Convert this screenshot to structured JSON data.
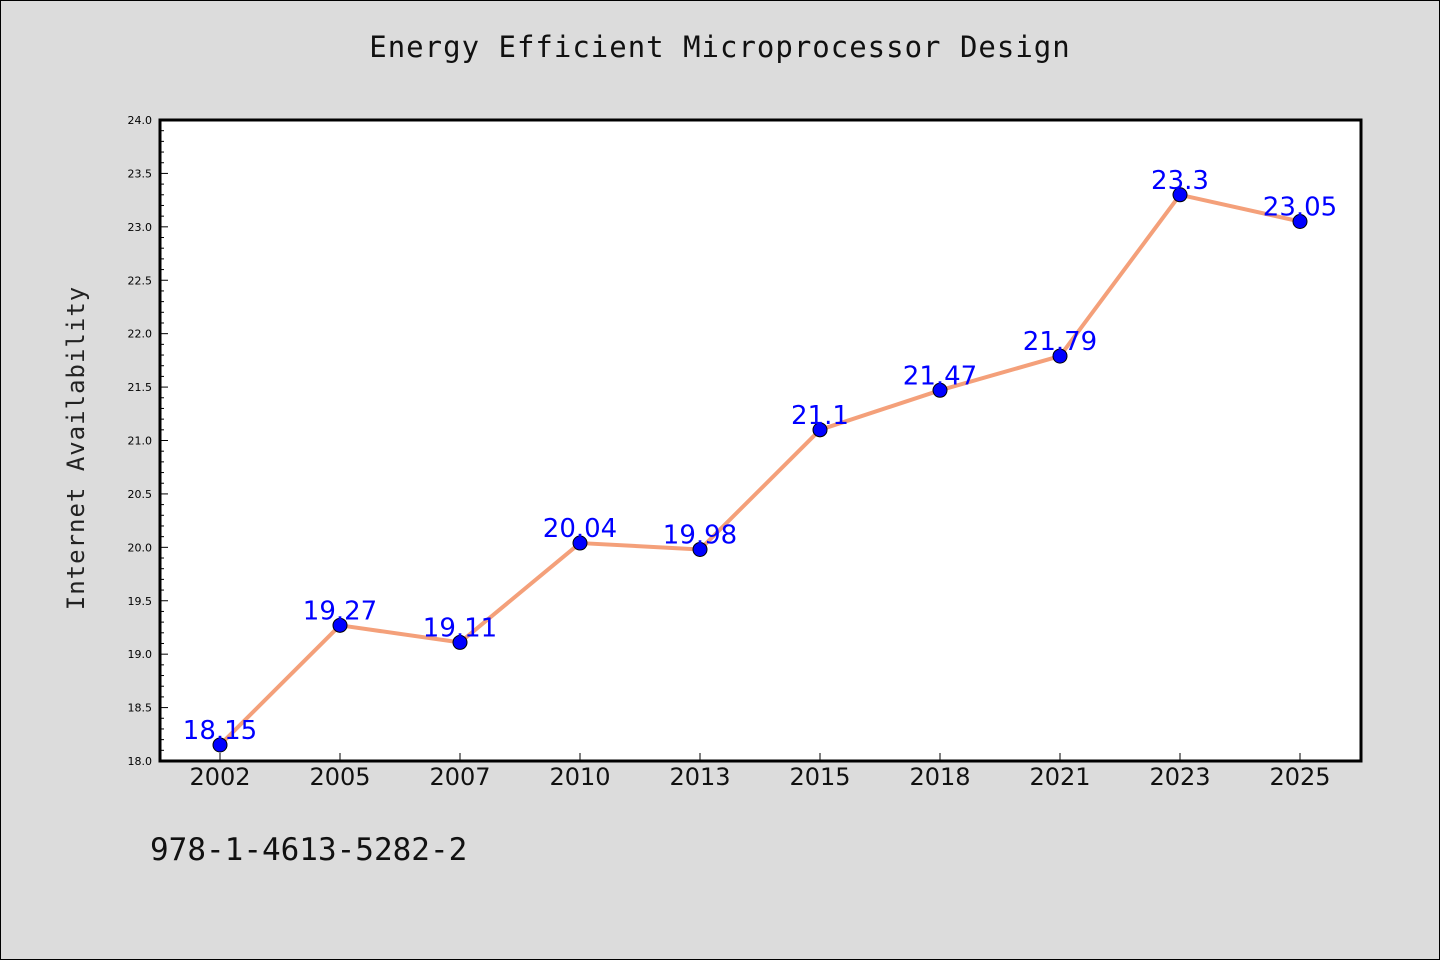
{
  "chart_data": {
    "type": "line",
    "title": "Energy Efficient Microprocessor Design",
    "xlabel": "",
    "ylabel": "Internet Availability",
    "categories": [
      "2002",
      "2005",
      "2007",
      "2010",
      "2013",
      "2015",
      "2018",
      "2021",
      "2023",
      "2025"
    ],
    "values": [
      18.15,
      19.27,
      19.11,
      20.04,
      19.98,
      21.1,
      21.47,
      21.79,
      23.3,
      23.05
    ],
    "data_labels": [
      "18.15",
      "19.27",
      "19.11",
      "20.04",
      "19.98",
      "21.1",
      "21.47",
      "21.79",
      "23.3",
      "23.05"
    ],
    "ylim": [
      18.0,
      24.0
    ],
    "yticks": [
      "18.0",
      "18.5",
      "19.0",
      "19.5",
      "20.0",
      "20.5",
      "21.0",
      "21.5",
      "22.0",
      "22.5",
      "23.0",
      "23.5",
      "24.0"
    ],
    "grid": false,
    "legend": "none",
    "colors": {
      "line": "#f4a07a",
      "marker": "#0000ff",
      "data_label": "#0000ff",
      "background": "#dcdcdc",
      "plot_area": "#ffffff"
    }
  },
  "footnote": "978-1-4613-5282-2"
}
